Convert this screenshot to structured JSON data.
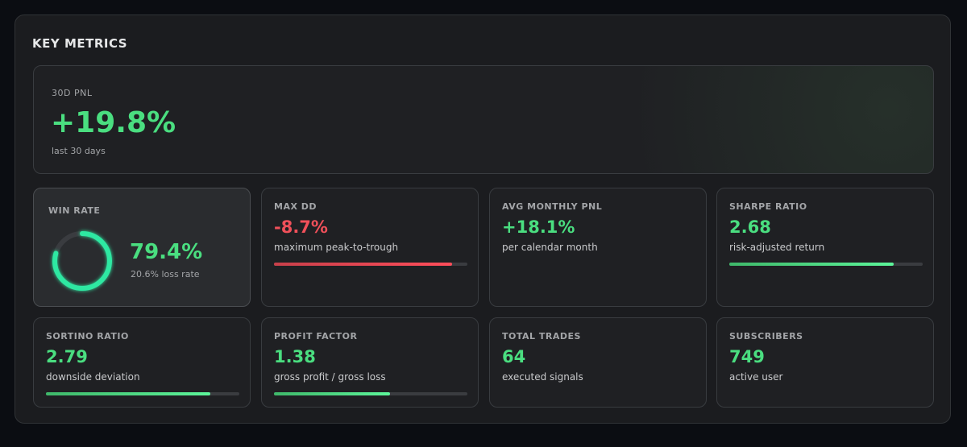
{
  "header": {
    "title": "KEY METRICS"
  },
  "hero": {
    "label": "30D PNL",
    "value": "+19.8%",
    "caption": "last 30 days"
  },
  "win_rate": {
    "label": "WIN RATE",
    "value": "79.4%",
    "ring_percent": 79.4,
    "caption": "20.6% loss rate"
  },
  "cards": [
    {
      "label": "MAX DD",
      "value": "-8.7%",
      "caption": "maximum peak-to-trough",
      "tone": "negative",
      "progress": 92
    },
    {
      "label": "AVG MONTHLY PNL",
      "value": "+18.1%",
      "caption": "per calendar month",
      "tone": "positive"
    },
    {
      "label": "SHARPE RATIO",
      "value": "2.68",
      "caption": "risk-adjusted return",
      "tone": "positive",
      "progress": 85
    },
    {
      "label": "SORTINO RATIO",
      "value": "2.79",
      "caption": "downside deviation",
      "tone": "positive",
      "progress": 85
    },
    {
      "label": "PROFIT FACTOR",
      "value": "1.38",
      "caption": "gross profit / gross loss",
      "tone": "positive",
      "progress": 60
    },
    {
      "label": "TOTAL TRADES",
      "value": "64",
      "caption": "executed signals",
      "tone": "positive"
    },
    {
      "label": "SUBSCRIBERS",
      "value": "749",
      "caption": "active user",
      "tone": "positive"
    }
  ]
}
